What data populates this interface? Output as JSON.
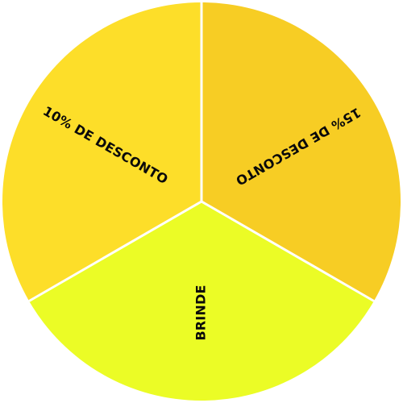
{
  "wheel": {
    "segments": [
      {
        "label": "15% DE DESCONTO",
        "color": "#F7CD24"
      },
      {
        "label": "BRINDE",
        "color": "#EBFC26"
      },
      {
        "label": "10% DE DESCONTO",
        "color": "#FDDE29"
      }
    ],
    "divider_color": "#ffffff"
  }
}
